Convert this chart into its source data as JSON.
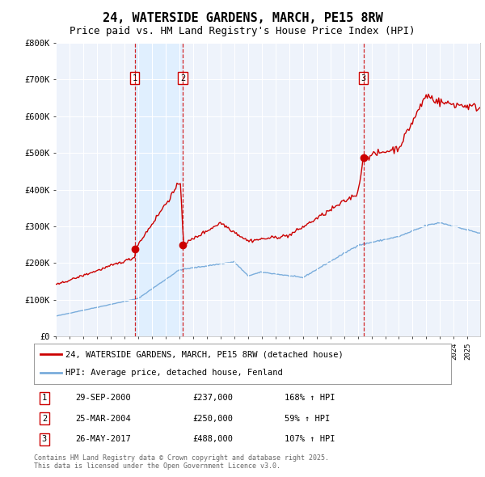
{
  "title": "24, WATERSIDE GARDENS, MARCH, PE15 8RW",
  "subtitle": "Price paid vs. HM Land Registry's House Price Index (HPI)",
  "ylim": [
    0,
    800000
  ],
  "yticks": [
    0,
    100000,
    200000,
    300000,
    400000,
    500000,
    600000,
    700000,
    800000
  ],
  "ytick_labels": [
    "£0",
    "£100K",
    "£200K",
    "£300K",
    "£400K",
    "£500K",
    "£600K",
    "£700K",
    "£800K"
  ],
  "xlim_start": 1995.0,
  "xlim_end": 2025.92,
  "transactions": [
    {
      "date_num": 2000.75,
      "price": 237000,
      "label": "1",
      "date_str": "29-SEP-2000",
      "price_str": "£237,000",
      "hpi_str": "168% ↑ HPI"
    },
    {
      "date_num": 2004.25,
      "price": 250000,
      "label": "2",
      "date_str": "25-MAR-2004",
      "price_str": "£250,000",
      "hpi_str": "59% ↑ HPI"
    },
    {
      "date_num": 2017.42,
      "price": 488000,
      "label": "3",
      "date_str": "26-MAY-2017",
      "price_str": "£488,000",
      "hpi_str": "107% ↑ HPI"
    }
  ],
  "legend_property": "24, WATERSIDE GARDENS, MARCH, PE15 8RW (detached house)",
  "legend_hpi": "HPI: Average price, detached house, Fenland",
  "property_color": "#cc0000",
  "hpi_color": "#7aaddc",
  "shade_color": "#ddeeff",
  "footnote": "Contains HM Land Registry data © Crown copyright and database right 2025.\nThis data is licensed under the Open Government Licence v3.0.",
  "background_color": "#eef3fb",
  "grid_color": "#ffffff",
  "title_fontsize": 11,
  "subtitle_fontsize": 9
}
